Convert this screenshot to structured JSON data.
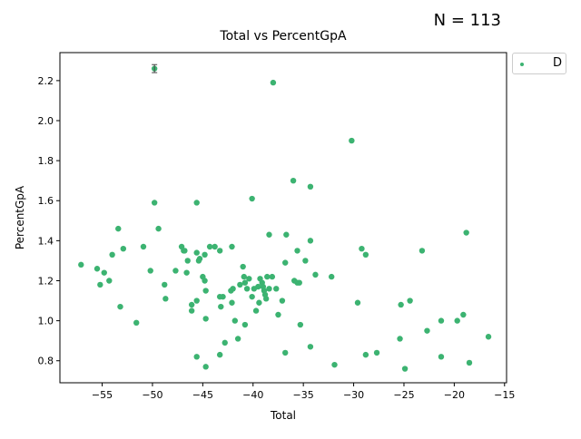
{
  "annotation": "N = 113",
  "chart_data": {
    "type": "scatter",
    "title": "Total vs PercentGpA",
    "xlabel": "Total",
    "ylabel": "PercentGpA",
    "xlim": [
      -59.2,
      -14.8
    ],
    "ylim": [
      0.69,
      2.34
    ],
    "xticks": [
      -55,
      -50,
      -45,
      -40,
      -35,
      -30,
      -25,
      -20,
      -15
    ],
    "yticks": [
      0.8,
      1.0,
      1.2,
      1.4,
      1.6,
      1.8,
      2.0,
      2.2
    ],
    "xtick_labels": [
      "−55",
      "−50",
      "−45",
      "−40",
      "−35",
      "−30",
      "−25",
      "−20",
      "−15"
    ],
    "ytick_labels": [
      "0.8",
      "1.0",
      "1.2",
      "1.4",
      "1.6",
      "1.8",
      "2.0",
      "2.2"
    ],
    "grid": false,
    "legend_position": "outside-top-right",
    "series": [
      {
        "name": "D",
        "color": "#3cb371",
        "points": [
          [
            -49.8,
            2.26
          ],
          [
            -38.0,
            2.19
          ],
          [
            -30.2,
            1.9
          ],
          [
            -36.0,
            1.7
          ],
          [
            -34.3,
            1.67
          ],
          [
            -40.1,
            1.61
          ],
          [
            -49.8,
            1.59
          ],
          [
            -45.6,
            1.59
          ],
          [
            -18.8,
            1.44
          ],
          [
            -53.4,
            1.46
          ],
          [
            -49.4,
            1.46
          ],
          [
            -38.4,
            1.43
          ],
          [
            -36.7,
            1.43
          ],
          [
            -34.3,
            1.4
          ],
          [
            -57.1,
            1.28
          ],
          [
            -54.0,
            1.33
          ],
          [
            -52.9,
            1.36
          ],
          [
            -50.9,
            1.37
          ],
          [
            -47.1,
            1.37
          ],
          [
            -46.8,
            1.35
          ],
          [
            -45.6,
            1.34
          ],
          [
            -44.8,
            1.33
          ],
          [
            -44.3,
            1.37
          ],
          [
            -43.8,
            1.37
          ],
          [
            -43.3,
            1.35
          ],
          [
            -42.1,
            1.37
          ],
          [
            -35.6,
            1.35
          ],
          [
            -29.2,
            1.36
          ],
          [
            -28.8,
            1.33
          ],
          [
            -23.2,
            1.35
          ],
          [
            -55.2,
            1.18
          ],
          [
            -54.8,
            1.24
          ],
          [
            -54.3,
            1.2
          ],
          [
            -50.2,
            1.25
          ],
          [
            -48.8,
            1.18
          ],
          [
            -47.7,
            1.25
          ],
          [
            -46.6,
            1.24
          ],
          [
            -46.5,
            1.3
          ],
          [
            -45.4,
            1.3
          ],
          [
            -45.3,
            1.31
          ],
          [
            -45.0,
            1.22
          ],
          [
            -44.8,
            1.2
          ],
          [
            -44.7,
            1.15
          ],
          [
            -43.3,
            1.12
          ],
          [
            -43.0,
            1.12
          ],
          [
            -42.2,
            1.15
          ],
          [
            -42.0,
            1.16
          ],
          [
            -41.0,
            1.27
          ],
          [
            -40.9,
            1.22
          ],
          [
            -40.8,
            1.19
          ],
          [
            -40.6,
            1.16
          ],
          [
            -40.4,
            1.21
          ],
          [
            -40.1,
            1.12
          ],
          [
            -39.9,
            1.16
          ],
          [
            -39.5,
            1.17
          ],
          [
            -39.3,
            1.21
          ],
          [
            -39.1,
            1.19
          ],
          [
            -39.0,
            1.17
          ],
          [
            -38.9,
            1.15
          ],
          [
            -38.8,
            1.13
          ],
          [
            -38.7,
            1.11
          ],
          [
            -38.6,
            1.22
          ],
          [
            -38.4,
            1.16
          ],
          [
            -38.1,
            1.22
          ],
          [
            -37.7,
            1.16
          ],
          [
            -37.1,
            1.1
          ],
          [
            -36.8,
            1.29
          ],
          [
            -35.9,
            1.2
          ],
          [
            -35.6,
            1.19
          ],
          [
            -35.4,
            1.19
          ],
          [
            -34.8,
            1.3
          ],
          [
            -33.8,
            1.23
          ],
          [
            -32.2,
            1.22
          ],
          [
            -53.2,
            1.07
          ],
          [
            -51.6,
            0.99
          ],
          [
            -48.7,
            1.11
          ],
          [
            -46.1,
            1.08
          ],
          [
            -46.1,
            1.05
          ],
          [
            -45.6,
            1.1
          ],
          [
            -44.7,
            1.01
          ],
          [
            -43.2,
            1.07
          ],
          [
            -42.1,
            1.09
          ],
          [
            -41.8,
            1.0
          ],
          [
            -40.8,
            0.98
          ],
          [
            -39.7,
            1.05
          ],
          [
            -39.4,
            1.09
          ],
          [
            -37.5,
            1.03
          ],
          [
            -35.3,
            0.98
          ],
          [
            -29.6,
            1.09
          ],
          [
            -25.3,
            1.08
          ],
          [
            -24.4,
            1.1
          ],
          [
            -21.3,
            1.0
          ],
          [
            -19.7,
            1.0
          ],
          [
            -19.1,
            1.03
          ],
          [
            -16.6,
            0.92
          ],
          [
            -45.6,
            0.82
          ],
          [
            -44.7,
            0.77
          ],
          [
            -43.3,
            0.83
          ],
          [
            -42.8,
            0.89
          ],
          [
            -41.5,
            0.91
          ],
          [
            -36.8,
            0.84
          ],
          [
            -34.3,
            0.87
          ],
          [
            -31.9,
            0.78
          ],
          [
            -28.8,
            0.83
          ],
          [
            -27.7,
            0.84
          ],
          [
            -25.4,
            0.91
          ],
          [
            -24.9,
            0.76
          ],
          [
            -22.7,
            0.95
          ],
          [
            -21.3,
            0.82
          ],
          [
            -18.5,
            0.79
          ],
          [
            -55.5,
            1.26
          ],
          [
            -46.9,
            1.35
          ],
          [
            -41.3,
            1.18
          ]
        ],
        "error_bars": [
          {
            "x": -49.8,
            "y": 2.26,
            "low": 2.24,
            "high": 2.28
          }
        ]
      }
    ]
  }
}
